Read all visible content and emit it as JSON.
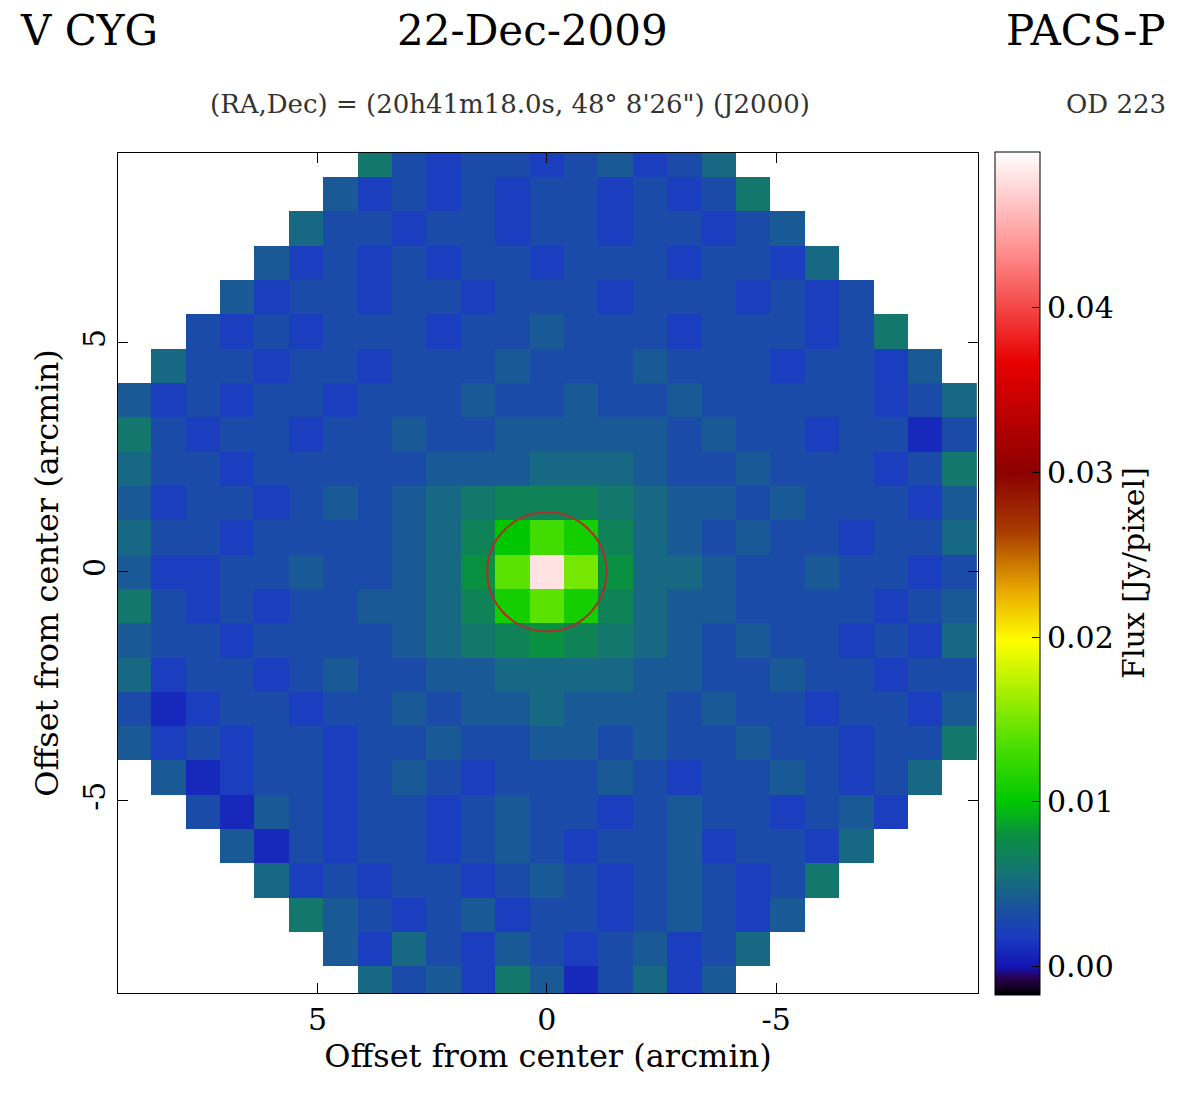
{
  "chart_data": {
    "type": "heatmap",
    "title": "V CYG",
    "subtitle": "(RA,Dec) = (20h41m18.0s, 48° 8'26\") (J2000)",
    "annotations": [
      "22-Dec-2009",
      "PACS-P",
      "OD 223"
    ],
    "xlabel": "Offset from center (arcmin)",
    "ylabel": "Offset from center (arcmin)",
    "xlim": [
      9.35,
      -9.4
    ],
    "ylim": [
      -9.2,
      9.15
    ],
    "xticks": [
      5,
      0,
      -5
    ],
    "yticks": [
      -5,
      0,
      5
    ],
    "grid": false,
    "x": [
      -9,
      -8.25,
      -7.5,
      -6.75,
      -6,
      -5.25,
      -4.5,
      -3.75,
      -3,
      -2.25,
      -1.5,
      -0.75,
      0,
      0.75,
      1.5,
      2.25,
      3,
      3.75,
      4.5,
      5.25,
      6,
      6.75,
      7.5,
      8.25,
      9
    ],
    "y": [
      -9,
      -8.25,
      -7.5,
      -6.75,
      -6,
      -5.25,
      -4.5,
      -3.75,
      -3,
      -2.25,
      -1.5,
      -0.75,
      0,
      0.75,
      1.5,
      2.25,
      3,
      3.75,
      4.5,
      5.25,
      6,
      6.75,
      7.5,
      8.25,
      9
    ],
    "z": [
      [
        null,
        null,
        null,
        null,
        null,
        null,
        null,
        0.004,
        0.002,
        0.005,
        0.003,
        0.001,
        0.004,
        0.006,
        0.002,
        0.004,
        0.003,
        0.005,
        null,
        null,
        null,
        null,
        null,
        null,
        null
      ],
      [
        null,
        null,
        null,
        null,
        null,
        null,
        0.005,
        0.003,
        0.002,
        0.004,
        0.003,
        0.002,
        0.003,
        0.004,
        0.002,
        0.003,
        0.005,
        0.002,
        0.004,
        null,
        null,
        null,
        null,
        null,
        null
      ],
      [
        null,
        null,
        null,
        null,
        null,
        0.004,
        0.002,
        0.003,
        0.004,
        0.003,
        0.002,
        0.003,
        0.003,
        0.002,
        0.004,
        0.003,
        0.002,
        0.003,
        0.004,
        0.006,
        null,
        null,
        null,
        null,
        null
      ],
      [
        null,
        null,
        null,
        null,
        0.006,
        0.003,
        0.002,
        0.003,
        0.004,
        0.003,
        0.002,
        0.003,
        0.004,
        0.003,
        0.002,
        0.003,
        0.003,
        0.002,
        0.003,
        0.002,
        0.005,
        null,
        null,
        null,
        null
      ],
      [
        null,
        null,
        null,
        0.005,
        0.002,
        0.003,
        0.003,
        0.002,
        0.004,
        0.003,
        0.003,
        0.002,
        0.003,
        0.004,
        0.003,
        0.002,
        0.003,
        0.003,
        0.002,
        0.003,
        0.001,
        0.004,
        null,
        null,
        null
      ],
      [
        null,
        null,
        0.002,
        0.004,
        0.003,
        0.002,
        0.003,
        0.003,
        0.004,
        0.003,
        0.002,
        0.003,
        0.003,
        0.004,
        0.003,
        0.002,
        0.003,
        0.003,
        0.002,
        0.003,
        0.004,
        0.001,
        0.003,
        null,
        null
      ],
      [
        null,
        0.005,
        0.003,
        0.002,
        0.003,
        0.004,
        0.003,
        0.003,
        0.002,
        0.003,
        0.004,
        0.003,
        0.003,
        0.003,
        0.002,
        0.003,
        0.004,
        0.003,
        0.002,
        0.003,
        0.003,
        0.002,
        0.001,
        0.004,
        null
      ],
      [
        0.006,
        0.003,
        0.003,
        0.002,
        0.003,
        0.003,
        0.004,
        0.003,
        0.003,
        0.004,
        0.003,
        0.004,
        0.004,
        0.003,
        0.003,
        0.004,
        0.003,
        0.003,
        0.002,
        0.003,
        0.003,
        0.002,
        0.003,
        0.002,
        0.004
      ],
      [
        0.004,
        0.002,
        0.003,
        0.003,
        0.002,
        0.003,
        0.003,
        0.004,
        0.003,
        0.004,
        0.004,
        0.004,
        0.005,
        0.004,
        0.004,
        0.003,
        0.004,
        0.003,
        0.003,
        0.002,
        0.003,
        0.003,
        0.002,
        0.001,
        0.003
      ],
      [
        0.003,
        0.003,
        0.002,
        0.003,
        0.003,
        0.004,
        0.003,
        0.003,
        0.004,
        0.004,
        0.005,
        0.005,
        0.005,
        0.005,
        0.004,
        0.004,
        0.003,
        0.003,
        0.004,
        0.003,
        0.002,
        0.003,
        0.003,
        0.002,
        0.005
      ],
      [
        0.005,
        0.002,
        0.003,
        0.002,
        0.003,
        0.003,
        0.004,
        0.003,
        0.004,
        0.005,
        0.006,
        0.007,
        0.008,
        0.007,
        0.006,
        0.005,
        0.004,
        0.003,
        0.003,
        0.003,
        0.003,
        0.002,
        0.003,
        0.003,
        0.004
      ],
      [
        0.004,
        0.003,
        0.002,
        0.003,
        0.003,
        0.003,
        0.003,
        0.004,
        0.004,
        0.005,
        0.007,
        0.011,
        0.014,
        0.011,
        0.007,
        0.005,
        0.004,
        0.004,
        0.003,
        0.003,
        0.002,
        0.003,
        0.002,
        0.003,
        0.006
      ],
      [
        0.003,
        0.002,
        0.003,
        0.003,
        0.004,
        0.003,
        0.003,
        0.004,
        0.005,
        0.005,
        0.008,
        0.015,
        0.048,
        0.014,
        0.008,
        0.005,
        0.004,
        0.003,
        0.003,
        0.004,
        0.003,
        0.003,
        0.002,
        0.002,
        0.004
      ],
      [
        0.005,
        0.003,
        0.003,
        0.002,
        0.003,
        0.003,
        0.004,
        0.003,
        0.004,
        0.005,
        0.007,
        0.011,
        0.013,
        0.01,
        0.007,
        0.005,
        0.004,
        0.003,
        0.003,
        0.003,
        0.003,
        0.002,
        0.003,
        0.003,
        0.005
      ],
      [
        0.004,
        0.002,
        0.003,
        0.003,
        0.003,
        0.004,
        0.003,
        0.004,
        0.004,
        0.005,
        0.006,
        0.007,
        0.007,
        0.007,
        0.006,
        0.005,
        0.004,
        0.003,
        0.004,
        0.003,
        0.002,
        0.003,
        0.003,
        0.002,
        0.004
      ],
      [
        0.006,
        0.003,
        0.002,
        0.003,
        0.003,
        0.003,
        0.004,
        0.003,
        0.003,
        0.004,
        0.005,
        0.005,
        0.005,
        0.004,
        0.004,
        0.004,
        0.003,
        0.003,
        0.003,
        0.003,
        0.003,
        0.002,
        0.003,
        0.003,
        0.005
      ],
      [
        0.003,
        0.001,
        0.003,
        0.003,
        0.002,
        0.003,
        0.003,
        0.004,
        0.003,
        0.004,
        0.004,
        0.004,
        0.004,
        0.004,
        0.003,
        0.003,
        0.004,
        0.003,
        0.003,
        0.002,
        0.003,
        0.003,
        0.002,
        0.003,
        0.006
      ],
      [
        0.005,
        0.003,
        0.002,
        0.003,
        0.003,
        0.003,
        0.003,
        0.003,
        0.004,
        0.003,
        0.003,
        0.004,
        0.003,
        0.003,
        0.004,
        0.003,
        0.003,
        0.003,
        0.002,
        0.003,
        0.003,
        0.002,
        0.003,
        0.002,
        0.004
      ],
      [
        null,
        0.004,
        0.002,
        0.003,
        0.003,
        0.002,
        0.003,
        0.003,
        0.003,
        0.004,
        0.003,
        0.003,
        0.003,
        0.004,
        0.003,
        0.003,
        0.003,
        0.002,
        0.003,
        0.003,
        0.002,
        0.003,
        0.003,
        0.005,
        null
      ],
      [
        null,
        null,
        0.006,
        0.003,
        0.002,
        0.003,
        0.003,
        0.003,
        0.002,
        0.003,
        0.003,
        0.003,
        0.004,
        0.003,
        0.003,
        0.002,
        0.003,
        0.003,
        0.003,
        0.002,
        0.003,
        0.002,
        0.003,
        null,
        null
      ],
      [
        null,
        null,
        null,
        0.003,
        0.002,
        0.003,
        0.002,
        0.003,
        0.003,
        0.003,
        0.002,
        0.003,
        0.003,
        0.003,
        0.002,
        0.003,
        0.003,
        0.002,
        0.003,
        0.003,
        0.002,
        0.004,
        null,
        null,
        null
      ],
      [
        null,
        null,
        null,
        null,
        0.005,
        0.002,
        0.003,
        0.003,
        0.002,
        0.003,
        0.003,
        0.003,
        0.002,
        0.003,
        0.003,
        0.002,
        0.003,
        0.002,
        0.003,
        0.002,
        0.004,
        null,
        null,
        null,
        null
      ],
      [
        null,
        null,
        null,
        null,
        null,
        0.004,
        0.003,
        0.002,
        0.003,
        0.003,
        0.002,
        0.003,
        0.003,
        0.002,
        0.003,
        0.003,
        0.002,
        0.003,
        0.003,
        0.005,
        null,
        null,
        null,
        null,
        null
      ],
      [
        null,
        null,
        null,
        null,
        null,
        null,
        0.006,
        0.003,
        0.002,
        0.003,
        0.002,
        0.003,
        0.003,
        0.002,
        0.003,
        0.002,
        0.003,
        0.002,
        0.004,
        null,
        null,
        null,
        null,
        null,
        null
      ],
      [
        null,
        null,
        null,
        null,
        null,
        null,
        null,
        0.005,
        0.003,
        0.002,
        0.004,
        0.003,
        0.002,
        0.003,
        0.003,
        0.002,
        0.003,
        0.006,
        null,
        null,
        null,
        null,
        null,
        null,
        null
      ]
    ],
    "colorbar": {
      "title": "Flux [Jy/pixel]",
      "range": [
        -0.0017,
        0.0495
      ],
      "ticks": [
        {
          "value": 0,
          "label": "0.00"
        },
        0.01,
        0.02,
        0.03,
        0.04
      ]
    },
    "circle": {
      "x": 0,
      "y": 0,
      "r": 1.3
    }
  }
}
